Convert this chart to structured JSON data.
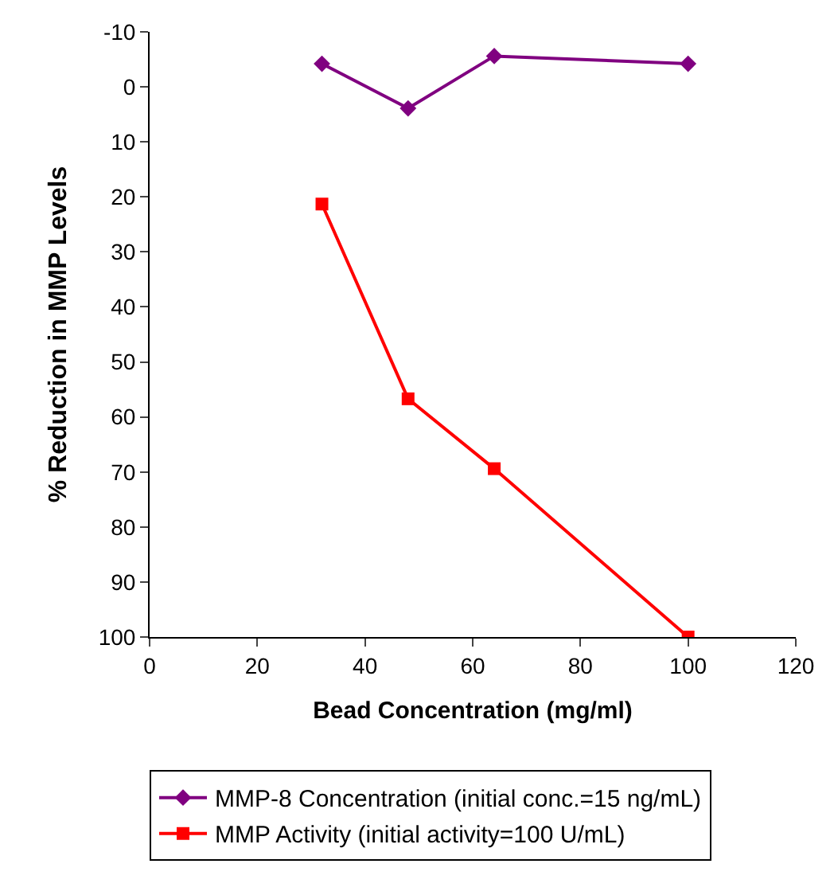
{
  "chart_data": {
    "type": "line",
    "xlabel": "Bead Concentration (mg/ml)",
    "ylabel": "% Reduction in MMP Levels",
    "x": [
      32,
      48,
      64,
      100
    ],
    "series": [
      {
        "name": "MMP-8 Concentration (initial conc.=15 ng/mL)",
        "color": "#800080",
        "marker": "diamond",
        "values": [
          -4.2,
          3.9,
          -5.6,
          -4.2
        ]
      },
      {
        "name": "MMP Activity (initial activity=100 U/mL)",
        "color": "#ff0000",
        "marker": "square",
        "values": [
          21.3,
          56.7,
          69.4,
          100
        ]
      }
    ],
    "xlim": [
      0,
      120
    ],
    "xticks": [
      0,
      20,
      40,
      60,
      80,
      100,
      120
    ],
    "ylim": [
      100,
      -10
    ],
    "yticks": [
      -10,
      0,
      10,
      20,
      30,
      40,
      50,
      60,
      70,
      80,
      90,
      100
    ],
    "grid": false,
    "legend": "bottom",
    "line_style": "solid"
  }
}
